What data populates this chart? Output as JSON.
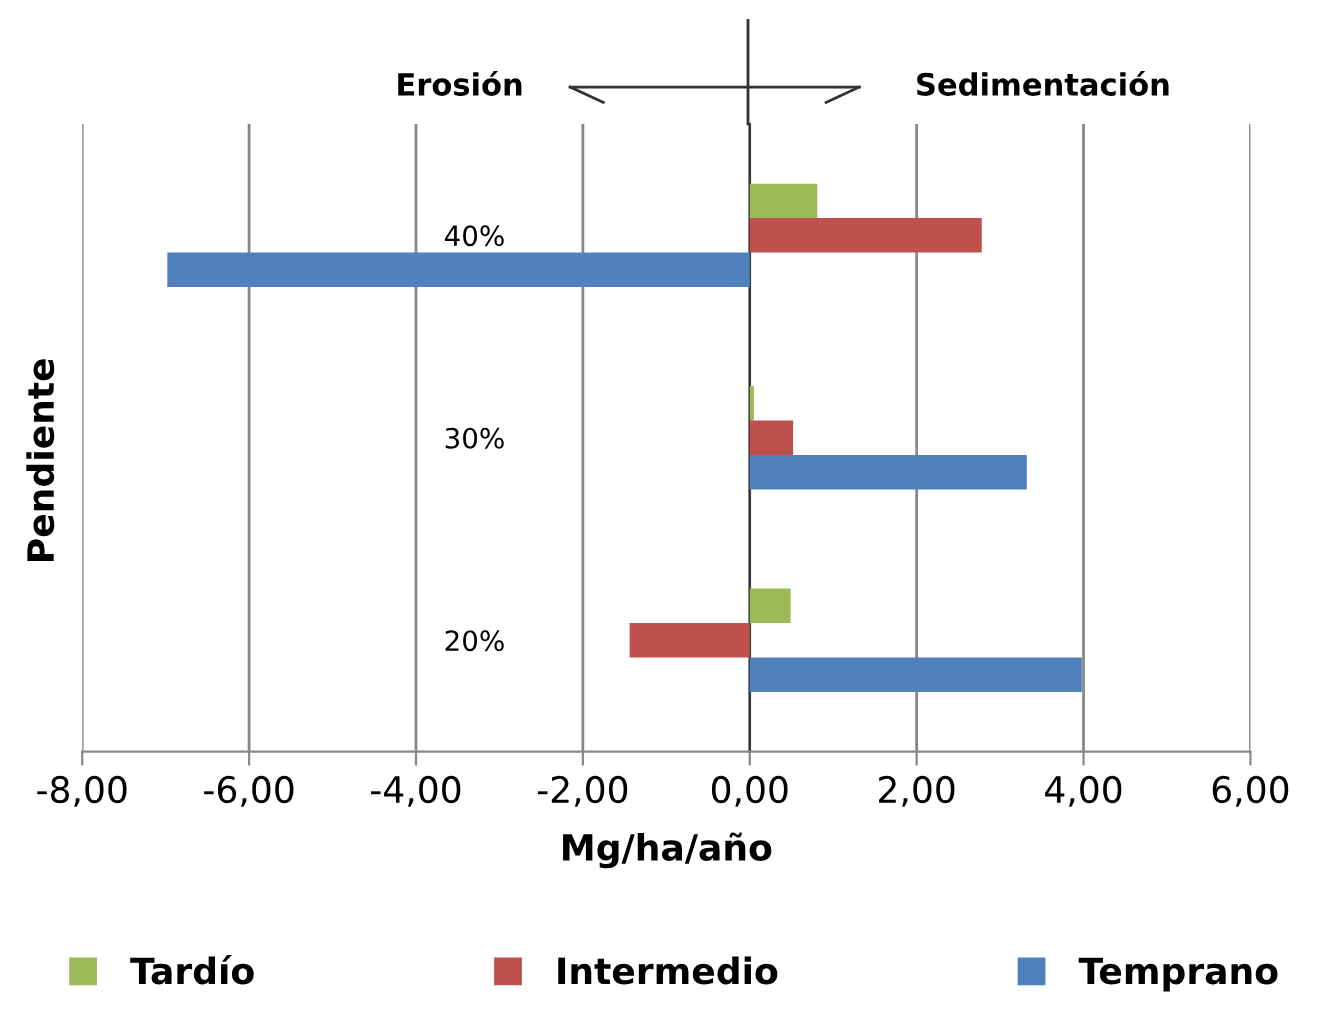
{
  "chart_data": {
    "type": "bar",
    "orientation": "horizontal",
    "xlabel": "Mg/ha/año",
    "ylabel": "Pendiente",
    "categories": [
      "40%",
      "30%",
      "20%"
    ],
    "series": [
      {
        "name": "Tardío",
        "color": "#9bbb59",
        "values": [
          0.81,
          0.05,
          0.49
        ]
      },
      {
        "name": "Intermedio",
        "color": "#c0504d",
        "values": [
          2.78,
          0.52,
          -1.44
        ]
      },
      {
        "name": "Temprano",
        "color": "#4f81bd",
        "values": [
          -6.98,
          3.32,
          3.98
        ]
      }
    ],
    "xlim": [
      -8,
      6
    ],
    "xticks": [
      {
        "value": -8,
        "label": "-8,00"
      },
      {
        "value": -6,
        "label": "-6,00"
      },
      {
        "value": -4,
        "label": "-4,00"
      },
      {
        "value": -2,
        "label": "-2,00"
      },
      {
        "value": 0,
        "label": "0,00"
      },
      {
        "value": 2,
        "label": "2,00"
      },
      {
        "value": 4,
        "label": "4,00"
      },
      {
        "value": 6,
        "label": "6,00"
      }
    ],
    "grid": "x",
    "legend": "bottom",
    "annotations": [
      "Erosión",
      "Sedimentación"
    ]
  }
}
